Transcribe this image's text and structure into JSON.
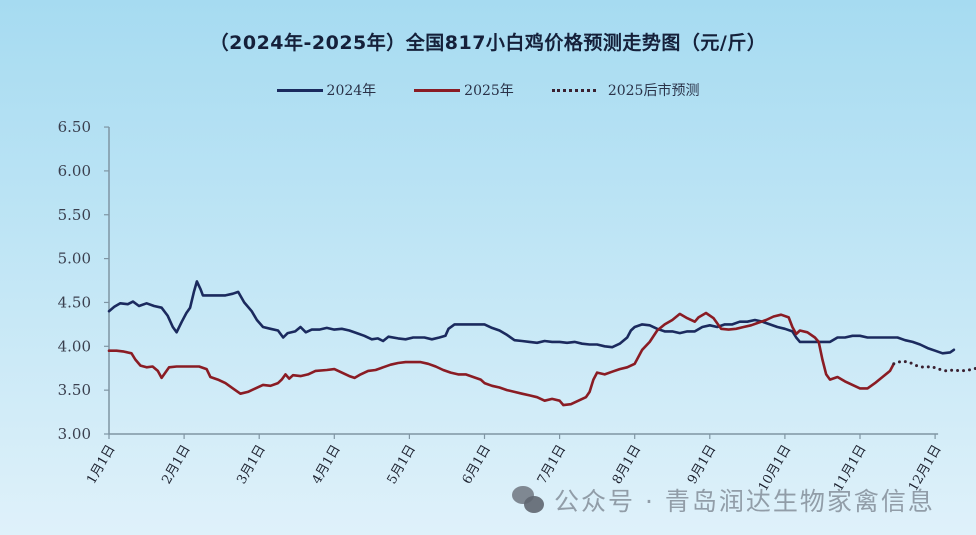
{
  "title": "（2024年-2025年）全国817小白鸡价格预测走势图（元/斤）",
  "legend": [
    {
      "label": "2024年",
      "color": "#1b2a5e",
      "style": "solid"
    },
    {
      "label": "2025年",
      "color": "#8a1c24",
      "style": "solid"
    },
    {
      "label": "2025后市预测",
      "color": "#3a2030",
      "style": "dotted"
    }
  ],
  "watermark": "公众号 · 青岛润达生物家禽信息",
  "chart_data": {
    "type": "line",
    "title": "（2024年-2025年）全国817小白鸡价格预测走势图（元/斤）",
    "xlabel": "",
    "ylabel": "元/斤",
    "ylim": [
      3.0,
      6.5
    ],
    "yticks": [
      "6.50",
      "6.00",
      "5.50",
      "5.00",
      "4.50",
      "4.00",
      "3.50",
      "3.00"
    ],
    "x_ticks": [
      "1月1日",
      "2月1日",
      "3月1日",
      "4月1日",
      "5月1日",
      "6月1日",
      "7月1日",
      "8月1日",
      "9月1日",
      "10月1日",
      "11月1日",
      "12月1日"
    ],
    "x_unit": "month (1.0 = Jan 1, 12.0 = Dec 1)",
    "grid": false,
    "legend_position": "top",
    "series": [
      {
        "name": "2024年",
        "color": "#1b2a5e",
        "points": [
          [
            1.0,
            4.4
          ],
          [
            1.07,
            4.45
          ],
          [
            1.15,
            4.49
          ],
          [
            1.25,
            4.48
          ],
          [
            1.32,
            4.51
          ],
          [
            1.4,
            4.46
          ],
          [
            1.5,
            4.49
          ],
          [
            1.6,
            4.46
          ],
          [
            1.7,
            4.44
          ],
          [
            1.78,
            4.35
          ],
          [
            1.85,
            4.22
          ],
          [
            1.9,
            4.16
          ],
          [
            1.97,
            4.28
          ],
          [
            2.03,
            4.38
          ],
          [
            2.08,
            4.44
          ],
          [
            2.13,
            4.62
          ],
          [
            2.17,
            4.74
          ],
          [
            2.22,
            4.65
          ],
          [
            2.25,
            4.58
          ],
          [
            2.4,
            4.58
          ],
          [
            2.55,
            4.58
          ],
          [
            2.65,
            4.6
          ],
          [
            2.72,
            4.62
          ],
          [
            2.8,
            4.5
          ],
          [
            2.9,
            4.4
          ],
          [
            2.97,
            4.3
          ],
          [
            3.05,
            4.22
          ],
          [
            3.15,
            4.2
          ],
          [
            3.25,
            4.18
          ],
          [
            3.32,
            4.1
          ],
          [
            3.38,
            4.15
          ],
          [
            3.48,
            4.17
          ],
          [
            3.55,
            4.22
          ],
          [
            3.62,
            4.16
          ],
          [
            3.7,
            4.19
          ],
          [
            3.8,
            4.19
          ],
          [
            3.9,
            4.21
          ],
          [
            4.0,
            4.19
          ],
          [
            4.1,
            4.2
          ],
          [
            4.2,
            4.18
          ],
          [
            4.3,
            4.15
          ],
          [
            4.4,
            4.12
          ],
          [
            4.5,
            4.08
          ],
          [
            4.58,
            4.09
          ],
          [
            4.65,
            4.06
          ],
          [
            4.72,
            4.11
          ],
          [
            4.85,
            4.09
          ],
          [
            4.95,
            4.08
          ],
          [
            5.05,
            4.1
          ],
          [
            5.2,
            4.1
          ],
          [
            5.3,
            4.08
          ],
          [
            5.4,
            4.1
          ],
          [
            5.48,
            4.12
          ],
          [
            5.52,
            4.2
          ],
          [
            5.6,
            4.25
          ],
          [
            5.8,
            4.25
          ],
          [
            6.0,
            4.25
          ],
          [
            6.1,
            4.21
          ],
          [
            6.2,
            4.18
          ],
          [
            6.3,
            4.13
          ],
          [
            6.4,
            4.07
          ],
          [
            6.5,
            4.06
          ],
          [
            6.6,
            4.05
          ],
          [
            6.7,
            4.04
          ],
          [
            6.8,
            4.06
          ],
          [
            6.9,
            4.05
          ],
          [
            7.0,
            4.05
          ],
          [
            7.1,
            4.04
          ],
          [
            7.2,
            4.05
          ],
          [
            7.3,
            4.03
          ],
          [
            7.4,
            4.02
          ],
          [
            7.5,
            4.02
          ],
          [
            7.6,
            4.0
          ],
          [
            7.7,
            3.99
          ],
          [
            7.8,
            4.03
          ],
          [
            7.9,
            4.1
          ],
          [
            7.95,
            4.18
          ],
          [
            8.0,
            4.22
          ],
          [
            8.1,
            4.25
          ],
          [
            8.2,
            4.24
          ],
          [
            8.3,
            4.2
          ],
          [
            8.4,
            4.17
          ],
          [
            8.5,
            4.17
          ],
          [
            8.6,
            4.15
          ],
          [
            8.7,
            4.17
          ],
          [
            8.8,
            4.17
          ],
          [
            8.9,
            4.22
          ],
          [
            9.0,
            4.24
          ],
          [
            9.1,
            4.22
          ],
          [
            9.2,
            4.25
          ],
          [
            9.3,
            4.25
          ],
          [
            9.4,
            4.28
          ],
          [
            9.5,
            4.28
          ],
          [
            9.6,
            4.3
          ],
          [
            9.7,
            4.28
          ],
          [
            9.8,
            4.25
          ],
          [
            9.9,
            4.22
          ],
          [
            10.0,
            4.2
          ],
          [
            10.1,
            4.17
          ],
          [
            10.15,
            4.1
          ],
          [
            10.2,
            4.05
          ],
          [
            10.4,
            4.05
          ],
          [
            10.6,
            4.05
          ],
          [
            10.7,
            4.1
          ],
          [
            10.8,
            4.1
          ],
          [
            10.9,
            4.12
          ],
          [
            11.0,
            4.12
          ],
          [
            11.1,
            4.1
          ],
          [
            11.2,
            4.1
          ],
          [
            11.3,
            4.1
          ],
          [
            11.4,
            4.1
          ],
          [
            11.5,
            4.1
          ],
          [
            11.6,
            4.07
          ],
          [
            11.7,
            4.05
          ],
          [
            11.8,
            4.02
          ],
          [
            11.9,
            3.98
          ],
          [
            12.0,
            3.95
          ],
          [
            12.1,
            3.92
          ],
          [
            12.2,
            3.93
          ],
          [
            12.25,
            3.96
          ]
        ]
      },
      {
        "name": "2025年",
        "color": "#8a1c24",
        "points": [
          [
            1.0,
            3.95
          ],
          [
            1.1,
            3.95
          ],
          [
            1.2,
            3.94
          ],
          [
            1.3,
            3.92
          ],
          [
            1.35,
            3.85
          ],
          [
            1.42,
            3.78
          ],
          [
            1.5,
            3.76
          ],
          [
            1.58,
            3.77
          ],
          [
            1.65,
            3.72
          ],
          [
            1.7,
            3.64
          ],
          [
            1.75,
            3.7
          ],
          [
            1.8,
            3.76
          ],
          [
            1.9,
            3.77
          ],
          [
            2.05,
            3.77
          ],
          [
            2.2,
            3.77
          ],
          [
            2.3,
            3.74
          ],
          [
            2.35,
            3.65
          ],
          [
            2.45,
            3.62
          ],
          [
            2.55,
            3.58
          ],
          [
            2.65,
            3.52
          ],
          [
            2.75,
            3.46
          ],
          [
            2.85,
            3.48
          ],
          [
            2.95,
            3.52
          ],
          [
            3.05,
            3.56
          ],
          [
            3.15,
            3.55
          ],
          [
            3.25,
            3.58
          ],
          [
            3.3,
            3.62
          ],
          [
            3.35,
            3.68
          ],
          [
            3.4,
            3.63
          ],
          [
            3.45,
            3.67
          ],
          [
            3.55,
            3.66
          ],
          [
            3.65,
            3.68
          ],
          [
            3.75,
            3.72
          ],
          [
            3.9,
            3.73
          ],
          [
            4.0,
            3.74
          ],
          [
            4.1,
            3.7
          ],
          [
            4.2,
            3.66
          ],
          [
            4.27,
            3.64
          ],
          [
            4.35,
            3.68
          ],
          [
            4.45,
            3.72
          ],
          [
            4.55,
            3.73
          ],
          [
            4.65,
            3.76
          ],
          [
            4.75,
            3.79
          ],
          [
            4.85,
            3.81
          ],
          [
            4.95,
            3.82
          ],
          [
            5.05,
            3.82
          ],
          [
            5.15,
            3.82
          ],
          [
            5.25,
            3.8
          ],
          [
            5.35,
            3.77
          ],
          [
            5.45,
            3.73
          ],
          [
            5.55,
            3.7
          ],
          [
            5.65,
            3.68
          ],
          [
            5.75,
            3.68
          ],
          [
            5.85,
            3.65
          ],
          [
            5.95,
            3.62
          ],
          [
            6.0,
            3.58
          ],
          [
            6.1,
            3.55
          ],
          [
            6.2,
            3.53
          ],
          [
            6.3,
            3.5
          ],
          [
            6.4,
            3.48
          ],
          [
            6.5,
            3.46
          ],
          [
            6.6,
            3.44
          ],
          [
            6.7,
            3.42
          ],
          [
            6.8,
            3.38
          ],
          [
            6.9,
            3.4
          ],
          [
            7.0,
            3.38
          ],
          [
            7.05,
            3.33
          ],
          [
            7.15,
            3.34
          ],
          [
            7.25,
            3.38
          ],
          [
            7.35,
            3.42
          ],
          [
            7.4,
            3.48
          ],
          [
            7.45,
            3.62
          ],
          [
            7.5,
            3.7
          ],
          [
            7.6,
            3.68
          ],
          [
            7.7,
            3.71
          ],
          [
            7.8,
            3.74
          ],
          [
            7.9,
            3.76
          ],
          [
            8.0,
            3.8
          ],
          [
            8.1,
            3.96
          ],
          [
            8.2,
            4.05
          ],
          [
            8.3,
            4.18
          ],
          [
            8.4,
            4.25
          ],
          [
            8.5,
            4.3
          ],
          [
            8.6,
            4.37
          ],
          [
            8.7,
            4.32
          ],
          [
            8.8,
            4.28
          ],
          [
            8.85,
            4.33
          ],
          [
            8.95,
            4.38
          ],
          [
            9.05,
            4.32
          ],
          [
            9.15,
            4.2
          ],
          [
            9.25,
            4.19
          ],
          [
            9.35,
            4.2
          ],
          [
            9.45,
            4.22
          ],
          [
            9.55,
            4.24
          ],
          [
            9.65,
            4.27
          ],
          [
            9.75,
            4.3
          ],
          [
            9.85,
            4.34
          ],
          [
            9.95,
            4.36
          ],
          [
            10.05,
            4.33
          ],
          [
            10.1,
            4.22
          ],
          [
            10.15,
            4.14
          ],
          [
            10.2,
            4.18
          ],
          [
            10.3,
            4.16
          ],
          [
            10.4,
            4.1
          ],
          [
            10.45,
            4.05
          ],
          [
            10.5,
            3.85
          ],
          [
            10.55,
            3.68
          ],
          [
            10.6,
            3.62
          ],
          [
            10.7,
            3.65
          ],
          [
            10.8,
            3.6
          ],
          [
            10.9,
            3.56
          ],
          [
            11.0,
            3.52
          ],
          [
            11.1,
            3.52
          ],
          [
            11.2,
            3.58
          ],
          [
            11.3,
            3.65
          ],
          [
            11.4,
            3.72
          ],
          [
            11.45,
            3.8
          ]
        ]
      },
      {
        "name": "2025后市预测",
        "color": "#3a2030",
        "style": "dotted",
        "points": [
          [
            11.45,
            3.8
          ],
          [
            11.55,
            3.83
          ],
          [
            11.65,
            3.82
          ],
          [
            11.75,
            3.78
          ],
          [
            11.85,
            3.76
          ],
          [
            11.95,
            3.77
          ],
          [
            12.05,
            3.74
          ],
          [
            12.15,
            3.72
          ],
          [
            12.25,
            3.73
          ],
          [
            12.35,
            3.72
          ],
          [
            12.45,
            3.73
          ],
          [
            12.55,
            3.75
          ],
          [
            12.6,
            3.8
          ],
          [
            12.65,
            3.78
          ]
        ]
      }
    ]
  }
}
